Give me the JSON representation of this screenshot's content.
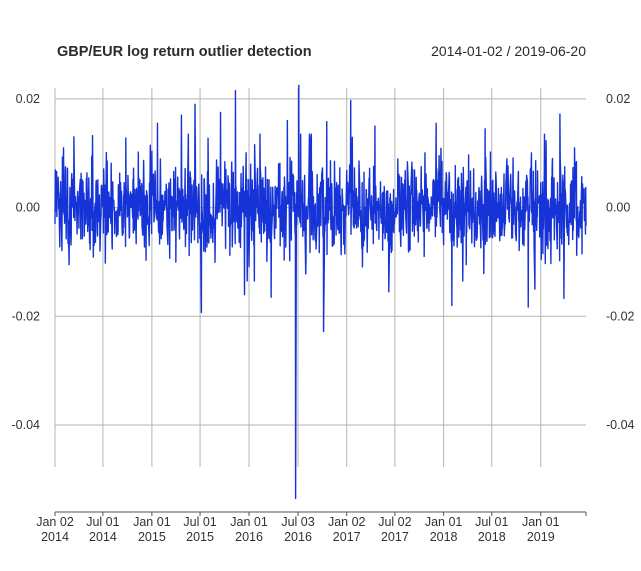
{
  "chart_data": {
    "type": "line",
    "title": "GBP/EUR log return outlier detection",
    "date_range_label": "2014-01-02 / 2019-06-20",
    "x_start": "2014-01-02",
    "x_end": "2019-06-20",
    "xlabel": "",
    "ylabel": "",
    "ylim": [
      -0.056,
      0.022
    ],
    "y_ticks": [
      {
        "value": 0.02,
        "label": "0.02"
      },
      {
        "value": 0.0,
        "label": "0.00"
      },
      {
        "value": -0.02,
        "label": "-0.02"
      },
      {
        "value": -0.04,
        "label": "-0.04"
      }
    ],
    "x_ticks": [
      {
        "date": "2014-01-02",
        "line1": "Jan 02",
        "line2": "2014"
      },
      {
        "date": "2014-07-01",
        "line1": "Jul 01",
        "line2": "2014"
      },
      {
        "date": "2015-01-01",
        "line1": "Jan 01",
        "line2": "2015"
      },
      {
        "date": "2015-07-01",
        "line1": "Jul 01",
        "line2": "2015"
      },
      {
        "date": "2016-01-01",
        "line1": "Jan 01",
        "line2": "2016"
      },
      {
        "date": "2016-07-03",
        "line1": "Jul 03",
        "line2": "2016"
      },
      {
        "date": "2017-01-02",
        "line1": "Jan 02",
        "line2": "2017"
      },
      {
        "date": "2017-07-02",
        "line1": "Jul 02",
        "line2": "2017"
      },
      {
        "date": "2018-01-01",
        "line1": "Jan 01",
        "line2": "2018"
      },
      {
        "date": "2018-07-01",
        "line1": "Jul 01",
        "line2": "2018"
      },
      {
        "date": "2019-01-01",
        "line1": "Jan 01",
        "line2": "2019"
      }
    ],
    "grid": true,
    "series": [
      {
        "color": "#1533d6",
        "seed": 20140102,
        "notable_points": [
          {
            "date": "2014-02-03",
            "value": 0.011
          },
          {
            "date": "2014-02-24",
            "value": -0.0105
          },
          {
            "date": "2014-03-14",
            "value": 0.013
          },
          {
            "date": "2015-01-22",
            "value": 0.0155
          },
          {
            "date": "2015-04-22",
            "value": 0.017
          },
          {
            "date": "2015-06-12",
            "value": 0.019
          },
          {
            "date": "2015-07-06",
            "value": -0.0193
          },
          {
            "date": "2015-09-16",
            "value": 0.0175
          },
          {
            "date": "2015-11-11",
            "value": 0.0215
          },
          {
            "date": "2015-12-15",
            "value": -0.016
          },
          {
            "date": "2016-03-24",
            "value": -0.0165
          },
          {
            "date": "2016-05-24",
            "value": 0.016
          },
          {
            "date": "2016-06-24",
            "value": -0.0535
          },
          {
            "date": "2016-07-06",
            "value": 0.0225
          },
          {
            "date": "2016-10-07",
            "value": -0.0228
          },
          {
            "date": "2016-10-19",
            "value": 0.0158
          },
          {
            "date": "2017-01-17",
            "value": 0.0197
          },
          {
            "date": "2017-04-18",
            "value": 0.015
          },
          {
            "date": "2017-06-09",
            "value": -0.0155
          },
          {
            "date": "2017-12-04",
            "value": 0.0155
          },
          {
            "date": "2018-02-01",
            "value": -0.018
          },
          {
            "date": "2018-06-06",
            "value": 0.0145
          },
          {
            "date": "2018-11-15",
            "value": -0.0183
          },
          {
            "date": "2018-12-10",
            "value": -0.015
          },
          {
            "date": "2019-01-15",
            "value": 0.0135
          },
          {
            "date": "2019-03-14",
            "value": 0.0172
          },
          {
            "date": "2019-03-29",
            "value": -0.0167
          },
          {
            "date": "2019-06-19",
            "value": 0.0037
          }
        ]
      }
    ]
  }
}
